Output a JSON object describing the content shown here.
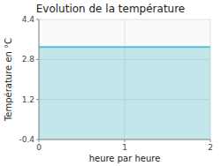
{
  "chart_data": {
    "type": "area",
    "title": "Evolution de la température",
    "xlabel": "heure par heure",
    "ylabel": "Température en °C",
    "x": [
      0,
      2
    ],
    "values": [
      3.3,
      3.3
    ],
    "color": "#5bbfcf",
    "xlim": [
      0,
      2
    ],
    "ylim": [
      -0.4,
      4.4
    ],
    "xticks": [
      0,
      1,
      2
    ],
    "yticks": [
      -0.4,
      1.2,
      2.8,
      4.4
    ],
    "grid": true
  }
}
